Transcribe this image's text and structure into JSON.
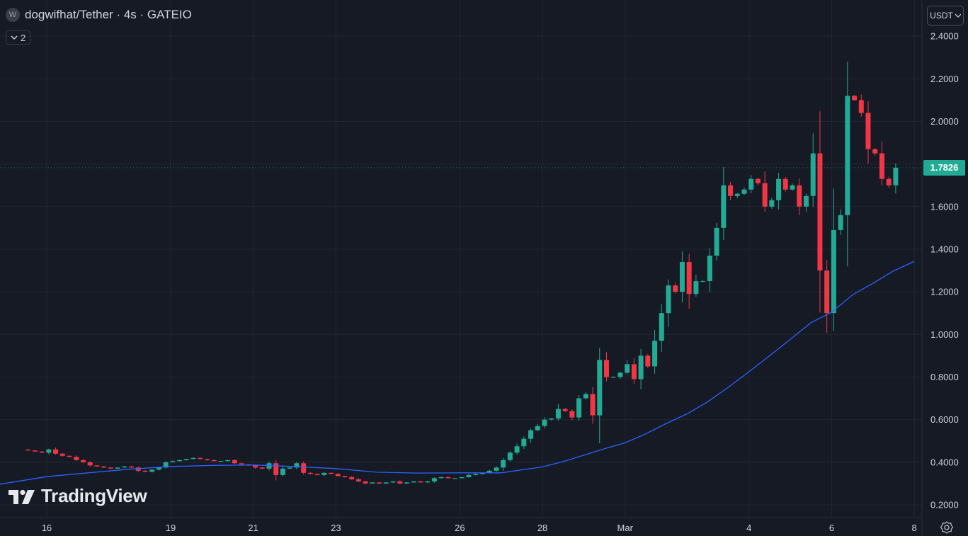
{
  "header": {
    "symbol_logo_letter": "W",
    "title": "dogwifhat/Tether · 4s · GATEIO",
    "collapse_count": "2"
  },
  "price_axis": {
    "currency": "USDT",
    "last_price_label": "1.7826"
  },
  "brand": {
    "logo_text": "TradingView"
  },
  "colors": {
    "up": "#22ab94",
    "down": "#f23645",
    "ma_line": "#2962ff",
    "background": "#161a25",
    "grid": "#232632"
  },
  "chart_data": {
    "type": "candlestick",
    "timeframe": "4s",
    "y_ticks": [
      0.2,
      0.4,
      0.6,
      0.8,
      1.0,
      1.2,
      1.4,
      1.6,
      1.8,
      2.0,
      2.2,
      2.4
    ],
    "y_tick_labels": [
      "0.2000",
      "0.4000",
      "0.6000",
      "0.8000",
      "1.0000",
      "1.2000",
      "1.4000",
      "1.6000",
      "1.8000",
      "2.0000",
      "2.2000",
      "2.4000"
    ],
    "ylim": [
      0.14,
      2.57
    ],
    "x_ticks": [
      {
        "label": "16",
        "day": 16
      },
      {
        "label": "19",
        "day": 19
      },
      {
        "label": "21",
        "day": 21
      },
      {
        "label": "23",
        "day": 23
      },
      {
        "label": "26",
        "day": 26
      },
      {
        "label": "28",
        "day": 28
      },
      {
        "label": "Mar",
        "day": 30
      },
      {
        "label": "4",
        "day": 33
      },
      {
        "label": "6",
        "day": 35
      },
      {
        "label": "8",
        "day": 37
      }
    ],
    "xlim_days": [
      14.87,
      38.3
    ],
    "last_price": 1.7826,
    "grid": true,
    "closes": [
      0.455,
      0.45,
      0.445,
      0.46,
      0.44,
      0.43,
      0.425,
      0.41,
      0.4,
      0.385,
      0.38,
      0.375,
      0.37,
      0.375,
      0.38,
      0.375,
      0.36,
      0.355,
      0.365,
      0.375,
      0.4,
      0.405,
      0.41,
      0.415,
      0.42,
      0.415,
      0.41,
      0.405,
      0.405,
      0.41,
      0.395,
      0.39,
      0.385,
      0.375,
      0.37,
      0.395,
      0.34,
      0.37,
      0.375,
      0.395,
      0.35,
      0.345,
      0.34,
      0.35,
      0.345,
      0.335,
      0.33,
      0.32,
      0.31,
      0.3,
      0.305,
      0.3,
      0.305,
      0.31,
      0.3,
      0.305,
      0.31,
      0.305,
      0.31,
      0.325,
      0.33,
      0.325,
      0.325,
      0.33,
      0.34,
      0.345,
      0.35,
      0.36,
      0.375,
      0.41,
      0.445,
      0.475,
      0.51,
      0.55,
      0.57,
      0.6,
      0.605,
      0.65,
      0.64,
      0.61,
      0.7,
      0.72,
      0.62,
      0.88,
      0.8,
      0.8,
      0.82,
      0.86,
      0.79,
      0.9,
      0.85,
      0.97,
      1.1,
      1.23,
      1.2,
      1.34,
      1.19,
      1.25,
      1.25,
      1.37,
      1.5,
      1.7,
      1.65,
      1.66,
      1.68,
      1.73,
      1.71,
      1.6,
      1.63,
      1.73,
      1.68,
      1.7,
      1.6,
      1.65,
      1.85,
      1.3,
      1.1,
      1.49,
      1.56,
      2.12,
      2.1,
      2.04,
      1.87,
      1.85,
      1.73,
      1.7,
      1.7826
    ],
    "ma_line": {
      "days": [
        14.87,
        16,
        17,
        18,
        19,
        20,
        21,
        22,
        23,
        24,
        25,
        26,
        27,
        28,
        28.5,
        29,
        29.5,
        30,
        30.5,
        31,
        31.5,
        32,
        32.5,
        33,
        33.5,
        34,
        34.5,
        35,
        35.5,
        36,
        36.5,
        37
      ],
      "values": [
        0.297,
        0.332,
        0.35,
        0.367,
        0.38,
        0.385,
        0.387,
        0.38,
        0.37,
        0.353,
        0.349,
        0.35,
        0.35,
        0.378,
        0.403,
        0.433,
        0.463,
        0.491,
        0.533,
        0.582,
        0.627,
        0.684,
        0.752,
        0.825,
        0.9,
        0.977,
        1.055,
        1.104,
        1.185,
        1.24,
        1.298,
        1.343
      ]
    }
  }
}
